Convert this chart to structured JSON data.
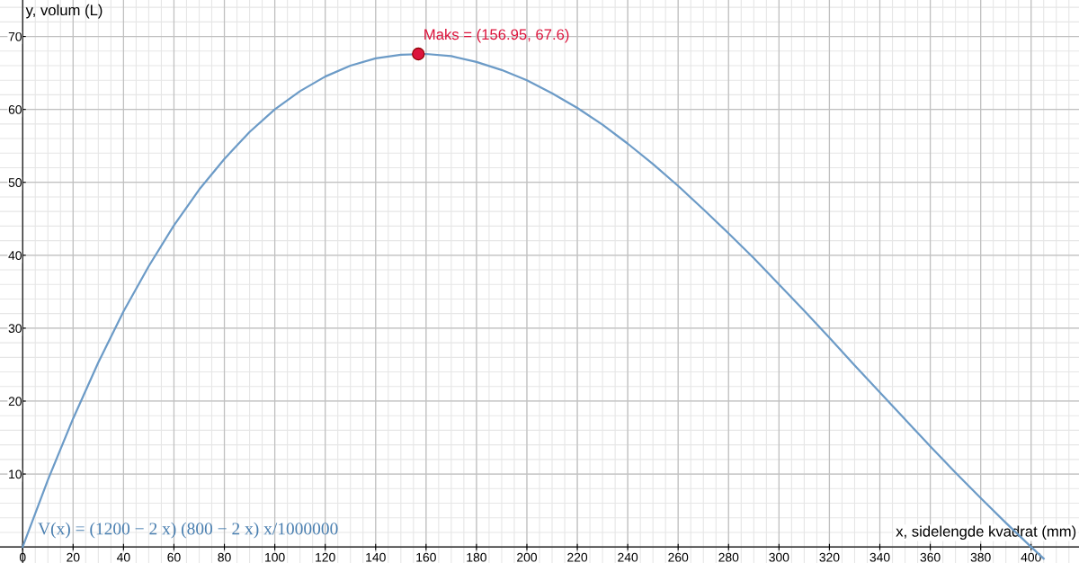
{
  "chart_data": {
    "type": "line",
    "xlabel": "x, sidelengde kvadrat (mm)",
    "ylabel": "y, volum (L)",
    "series": [
      {
        "color": "#6c9bc7",
        "x": [
          0,
          10,
          20,
          30,
          40,
          50,
          60,
          70,
          80,
          90,
          100,
          110,
          120,
          130,
          140,
          150,
          160,
          170,
          180,
          190,
          200,
          210,
          220,
          230,
          240,
          250,
          260,
          270,
          280,
          290,
          300,
          310,
          320,
          330,
          340,
          350,
          360,
          370,
          380,
          390,
          400,
          405
        ],
        "values": [
          0,
          9.2,
          17.6,
          25.3,
          32.3,
          38.5,
          44.1,
          49.0,
          53.2,
          56.9,
          60.0,
          62.5,
          64.5,
          66.0,
          67.0,
          67.5,
          67.6,
          67.3,
          66.5,
          65.4,
          64.0,
          62.2,
          60.2,
          57.9,
          55.3,
          52.5,
          49.5,
          46.3,
          43.0,
          39.6,
          36.0,
          32.4,
          28.7,
          24.9,
          21.2,
          17.5,
          13.8,
          10.2,
          6.7,
          3.3,
          0,
          -1.6
        ]
      },
      {
        "type": "scatter",
        "color": "#dc143c",
        "x": [
          156.95
        ],
        "values": [
          67.6
        ]
      }
    ],
    "annotations": [
      {
        "text": "Maks = (156.95, 67.6)",
        "x": 156.95,
        "y": 67.6
      },
      "V(x) = (1200 − 2 x) (800 − 2 x) x/1000000"
    ],
    "xlim": [
      -9,
      419
    ],
    "ylim": [
      -2.2,
      75
    ],
    "xticks": [
      {
        "value": 0,
        "label": "0"
      },
      20,
      40,
      60,
      80,
      100,
      120,
      140,
      160,
      180,
      200,
      220,
      240,
      260,
      280,
      300,
      320,
      340,
      360,
      380,
      400
    ],
    "yticks": [
      10,
      20,
      30,
      40,
      50,
      60,
      70
    ],
    "grid": true
  }
}
